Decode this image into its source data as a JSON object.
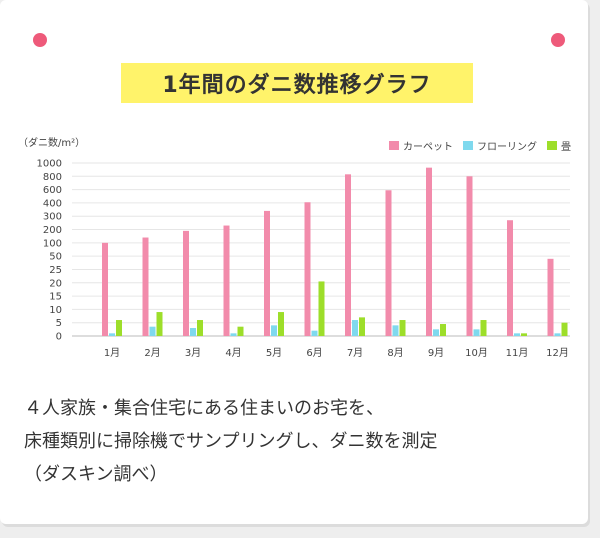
{
  "header": {
    "title": "1年間のダニ数推移グラフ"
  },
  "chart_data": {
    "type": "bar",
    "y_unit_label": "（ダニ数/m²）",
    "categories": [
      "1月",
      "2月",
      "3月",
      "4月",
      "5月",
      "6月",
      "7月",
      "8月",
      "9月",
      "10月",
      "11月",
      "12月"
    ],
    "y_ticks": [
      "0",
      "5",
      "10",
      "15",
      "20",
      "25",
      "50",
      "100",
      "200",
      "300",
      "400",
      "600",
      "800",
      "1000"
    ],
    "y_tick_values": [
      0,
      5,
      10,
      15,
      20,
      25,
      50,
      100,
      200,
      300,
      400,
      600,
      800,
      1000
    ],
    "y_scale": "piecewise",
    "grid": true,
    "legend_position": "top-right",
    "series": [
      {
        "name": "カーペット",
        "color": "#f28bab",
        "values": [
          100,
          140,
          190,
          230,
          340,
          410,
          830,
          590,
          930,
          800,
          270,
          45
        ]
      },
      {
        "name": "フローリング",
        "color": "#7fd9ee",
        "values": [
          1,
          3.5,
          3,
          1,
          4,
          2,
          6,
          4,
          2.5,
          2.5,
          1,
          1
        ]
      },
      {
        "name": "畳",
        "color": "#9dde2a",
        "values": [
          6,
          9,
          6,
          3.5,
          9,
          20.5,
          7,
          6,
          4.5,
          6,
          1,
          5
        ]
      }
    ]
  },
  "description": {
    "line1": "４人家族・集合住宅にある住まいのお宅を、",
    "line2": "床種類別に掃除機でサンプリングし、ダニ数を測定",
    "line3": "（ダスキン調べ）"
  }
}
